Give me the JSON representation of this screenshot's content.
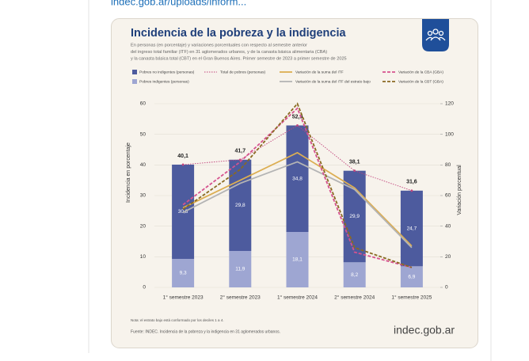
{
  "link_text": "indec.gob.ar/uploads/inform...",
  "chart_data": {
    "type": "bar",
    "title": "Incidencia de la pobreza y la indigencia",
    "subtitle": [
      "En personas (en porcentaje) y variaciones porcentuales con respecto al semestre anterior",
      "del ingreso total familiar (ITF) en 31 aglomerados urbanos, y de la canasta básica alimentaria (CBA)",
      "y la canasta básica total (CBT) en el Gran Buenos Aires. Primer semestre de 2023 a primer semestre de 2025"
    ],
    "categories": [
      "1° semestre 2023",
      "2° semestre 2023",
      "1° semestre 2024",
      "2° semestre 2024",
      "1° semestre 2025"
    ],
    "ylabel": "Incidencia en porcentaje",
    "y2label": "Variación porcentual",
    "ylim": [
      0,
      60
    ],
    "yticks": [
      0,
      10,
      20,
      30,
      40,
      50,
      60
    ],
    "y2lim": [
      0,
      120
    ],
    "y2ticks": [
      0,
      20,
      40,
      60,
      80,
      100,
      120
    ],
    "series": [
      {
        "name": "Pobres indigentes (personas)",
        "type": "bar",
        "color": "#9ea6d2",
        "values": [
          9.3,
          11.9,
          18.1,
          8.2,
          6.9
        ],
        "value_labels": [
          "9,3",
          "11,9",
          "18,1",
          "8,2",
          "6,9"
        ]
      },
      {
        "name": "Pobres no indigentes (personas)",
        "type": "bar",
        "color": "#4d5b9e",
        "values": [
          30.8,
          29.8,
          34.8,
          29.9,
          24.7
        ],
        "value_labels": [
          "30,8",
          "29,8",
          "34,8",
          "29,9",
          "24,7"
        ]
      },
      {
        "name": "Total de pobres (personas)",
        "type": "line",
        "style": "dotted",
        "color": "#c2447c",
        "values": [
          40.1,
          41.7,
          52.9,
          38.1,
          31.6
        ],
        "value_labels": [
          "40,1",
          "41,7",
          "52,9",
          "38,1",
          "31,6"
        ]
      },
      {
        "name": "Variación de la suma del ITF",
        "type": "line",
        "style": "solid",
        "axis": "y2",
        "color": "#dcae52",
        "values": [
          52,
          70,
          88,
          65,
          27
        ]
      },
      {
        "name": "Variación de la suma del ITF del estrato bajo",
        "type": "line",
        "style": "solid",
        "axis": "y2",
        "color": "#b4b4b4",
        "values": [
          49,
          68,
          82,
          64,
          26
        ]
      },
      {
        "name": "Variación de la CBA (GBA)",
        "type": "line",
        "style": "dashed",
        "axis": "y2",
        "color": "#d6528e",
        "values": [
          54,
          82,
          117,
          23,
          13
        ]
      },
      {
        "name": "Variación de la CBT (GBA)",
        "type": "line",
        "style": "dashed",
        "axis": "y2",
        "color": "#8a6a22",
        "values": [
          51,
          77,
          120,
          26,
          13
        ]
      }
    ],
    "note": "Nota: el estrato bajo está conformado por los deciles 1 a 4.",
    "source": "Fuente: INDEC. Incidencia de la pobreza y la indigencia en 31 aglomerados urbanos.",
    "logo": "indec.gob.ar"
  }
}
